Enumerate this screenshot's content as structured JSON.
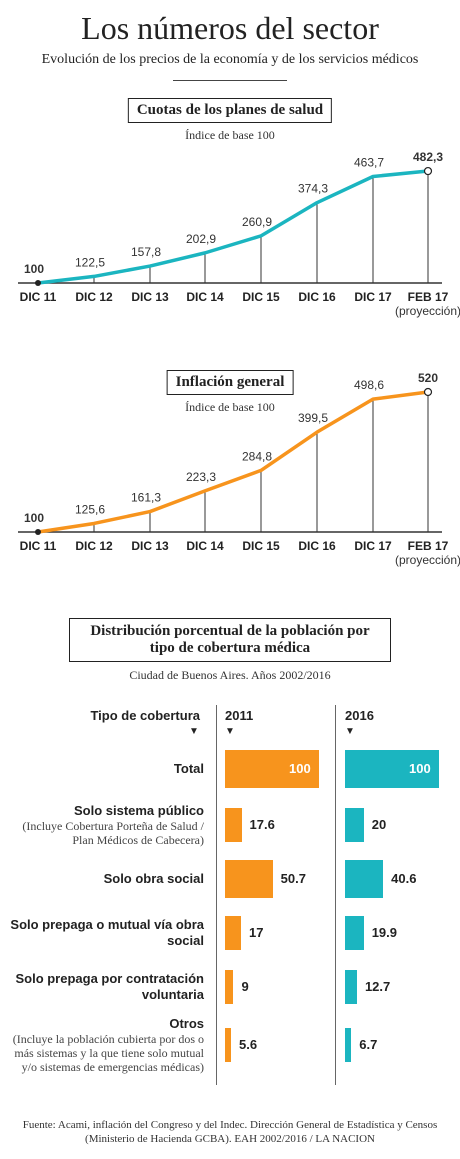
{
  "header": {
    "title": "Los números del sector",
    "subtitle": "Evolución de los precios de la economía y de los servicios médicos"
  },
  "colors": {
    "teal": "#1bb5c0",
    "orange": "#f7941d",
    "text": "#222222"
  },
  "chart_data": [
    {
      "type": "line",
      "title": "Cuotas de los planes de salud",
      "note": "Índice de base 100",
      "categories": [
        "DIC 11",
        "DIC 12",
        "DIC 13",
        "DIC 14",
        "DIC 15",
        "DIC 16",
        "DIC 17",
        "FEB 17"
      ],
      "value_labels": [
        "100",
        "122,5",
        "157,8",
        "202,9",
        "260,9",
        "374,3",
        "463,7",
        "482,3"
      ],
      "values": [
        100,
        122.5,
        157.8,
        202.9,
        260.9,
        374.3,
        463.7,
        482.3
      ],
      "last_label_sub": "(proyección)",
      "color": "#1bb5c0"
    },
    {
      "type": "line",
      "title": "Inflación general",
      "note": "Índice de base 100",
      "categories": [
        "DIC 11",
        "DIC 12",
        "DIC 13",
        "DIC 14",
        "DIC 15",
        "DIC 16",
        "DIC 17",
        "FEB 17"
      ],
      "value_labels": [
        "100",
        "125,6",
        "161,3",
        "223,3",
        "284,8",
        "399,5",
        "498,6",
        "520"
      ],
      "values": [
        100,
        125.6,
        161.3,
        223.3,
        284.8,
        399.5,
        498.6,
        520
      ],
      "last_label_sub": "(proyección)",
      "color": "#f7941d"
    },
    {
      "type": "bar",
      "title": "Distribución porcentual de la población por tipo de cobertura médica",
      "note": "Ciudad de Buenos Aires. Años 2002/2016",
      "category_header": "Tipo de cobertura",
      "categories": [
        {
          "label": "Total",
          "sub": ""
        },
        {
          "label": "Solo sistema público",
          "sub": "(Incluye Cobertura Porteña de Salud / Plan Médicos de Cabecera)"
        },
        {
          "label": "Solo obra social",
          "sub": ""
        },
        {
          "label": "Solo prepaga o mutual vía obra social",
          "sub": ""
        },
        {
          "label": "Solo prepaga por contratación voluntaria",
          "sub": ""
        },
        {
          "label": "Otros",
          "sub": "(Incluye la población cubierta por dos o más sistemas y la que tiene solo mutual y/o sistemas de emergencias médicas)"
        }
      ],
      "series": [
        {
          "name": "2011",
          "color": "#f7941d",
          "values": [
            100,
            17.6,
            50.7,
            17,
            9,
            5.6
          ],
          "value_labels": [
            "100",
            "17.6",
            "50.7",
            "17",
            "9",
            "5.6"
          ]
        },
        {
          "name": "2016",
          "color": "#1bb5c0",
          "values": [
            100,
            20,
            40.6,
            19.9,
            12.7,
            6.7
          ],
          "value_labels": [
            "100",
            "20",
            "40.6",
            "19.9",
            "12.7",
            "6.7"
          ]
        }
      ]
    }
  ],
  "footer": "Fuente: Acami, inflación del Congreso y del Indec. Dirección General de Estadística y Censos (Ministerio de Hacienda GCBA). EAH 2002/2016 / LA NACION"
}
